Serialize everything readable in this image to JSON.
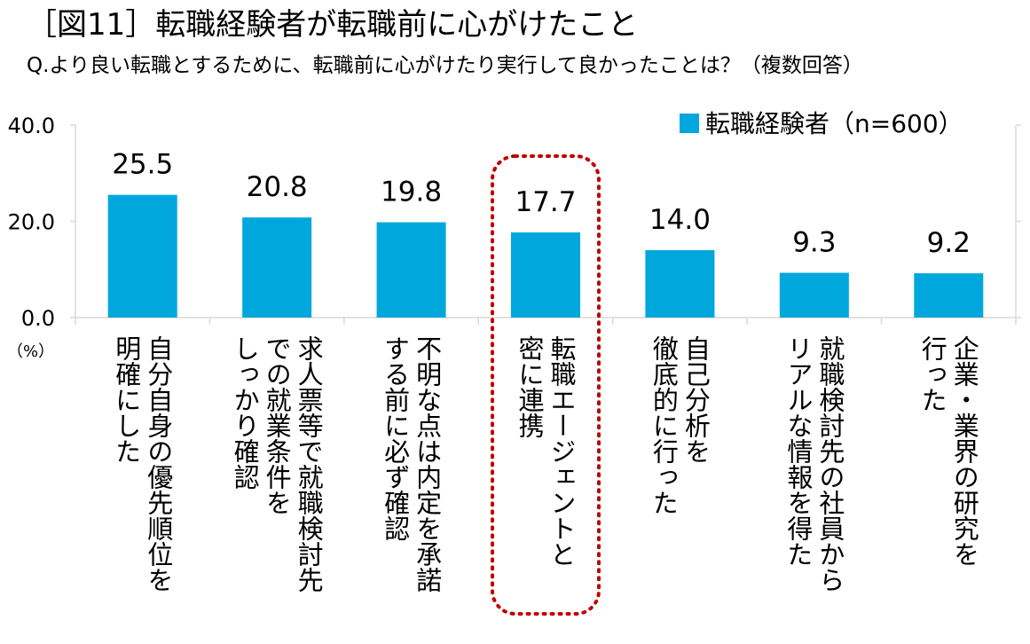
{
  "header": {
    "title": "［図11］転職経験者が転職前に心がけたこと",
    "subtitle": "Q.より良い転職とするために、転職前に心がけたり実行して良かったことは？（複数回答）"
  },
  "chart_data": {
    "type": "bar",
    "categories": [
      "自分自身の優先順位を明確にした",
      "求人票等で就業条件をしっかり確認",
      "不明な点は内定を承諾する前に必ず確認",
      "転職エージェントと密に連携",
      "自己分析を徹底的に行った",
      "就職検討先の社員からリアルな情報を得た",
      "企業・業界の研究を行った"
    ],
    "category_lines": [
      [
        "自分自身の優先順位を",
        "明確にした"
      ],
      [
        "求人票等で就職検討先",
        "での就業条件を",
        "しっかり確認"
      ],
      [
        "不明な点は内定を承諾",
        "する前に必ず確認"
      ],
      [
        "転職エージェントと",
        "密に連携"
      ],
      [
        "自己分析を",
        "徹底的に行った"
      ],
      [
        "就職検討先の社員から",
        "リアルな情報を得た"
      ],
      [
        "企業・業界の研究を",
        "行った"
      ]
    ],
    "series": [
      {
        "name": "転職経験者（n=600）",
        "values": [
          25.5,
          20.8,
          19.8,
          17.7,
          14.0,
          9.3,
          9.2
        ]
      }
    ],
    "value_labels": [
      "25.5",
      "20.8",
      "19.8",
      "17.7",
      "14.0",
      "9.3",
      "9.2"
    ],
    "ylim": [
      0,
      40
    ],
    "yticks": [
      "0.0",
      "20.0",
      "40.0"
    ],
    "yunit": "（%）",
    "highlight_index": 3,
    "bar_color": "#00A7DD",
    "highlight_color": "#C00000",
    "grid": false,
    "legend_position": "top-right"
  }
}
